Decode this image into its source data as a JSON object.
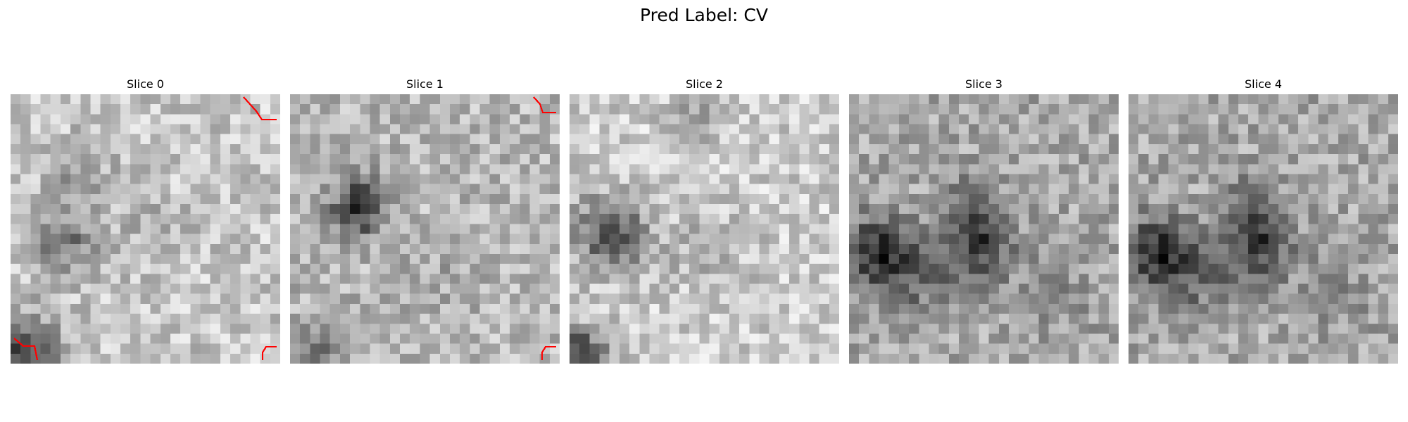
{
  "figure": {
    "title": "Pred Label: CV"
  },
  "slices": [
    {
      "title": "Slice 0"
    },
    {
      "title": "Slice 1"
    },
    {
      "title": "Slice 2"
    },
    {
      "title": "Slice 3"
    },
    {
      "title": "Slice 4"
    }
  ],
  "colors": {
    "background": "#ffffff",
    "colormap": "grayscale",
    "marker": "#ff0000"
  }
}
